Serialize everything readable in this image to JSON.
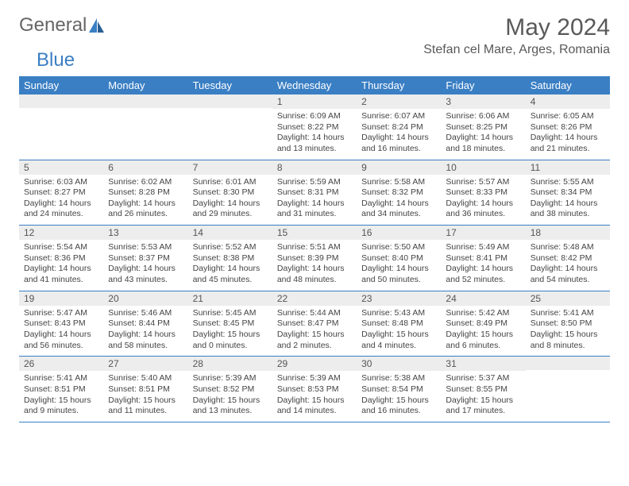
{
  "logo": {
    "text1": "General",
    "text2": "Blue",
    "accent": "#3a7fc4"
  },
  "title": "May 2024",
  "location": "Stefan cel Mare, Arges, Romania",
  "colors": {
    "header_bg": "#3a7fc4",
    "header_text": "#ffffff",
    "daynum_bg": "#ededed",
    "border": "#3a7fc4",
    "text": "#444444"
  },
  "dayHeaders": [
    "Sunday",
    "Monday",
    "Tuesday",
    "Wednesday",
    "Thursday",
    "Friday",
    "Saturday"
  ],
  "weeks": [
    [
      {
        "n": "",
        "sr": "",
        "ss": "",
        "dl": ""
      },
      {
        "n": "",
        "sr": "",
        "ss": "",
        "dl": ""
      },
      {
        "n": "",
        "sr": "",
        "ss": "",
        "dl": ""
      },
      {
        "n": "1",
        "sr": "6:09 AM",
        "ss": "8:22 PM",
        "dl": "14 hours and 13 minutes."
      },
      {
        "n": "2",
        "sr": "6:07 AM",
        "ss": "8:24 PM",
        "dl": "14 hours and 16 minutes."
      },
      {
        "n": "3",
        "sr": "6:06 AM",
        "ss": "8:25 PM",
        "dl": "14 hours and 18 minutes."
      },
      {
        "n": "4",
        "sr": "6:05 AM",
        "ss": "8:26 PM",
        "dl": "14 hours and 21 minutes."
      }
    ],
    [
      {
        "n": "5",
        "sr": "6:03 AM",
        "ss": "8:27 PM",
        "dl": "14 hours and 24 minutes."
      },
      {
        "n": "6",
        "sr": "6:02 AM",
        "ss": "8:28 PM",
        "dl": "14 hours and 26 minutes."
      },
      {
        "n": "7",
        "sr": "6:01 AM",
        "ss": "8:30 PM",
        "dl": "14 hours and 29 minutes."
      },
      {
        "n": "8",
        "sr": "5:59 AM",
        "ss": "8:31 PM",
        "dl": "14 hours and 31 minutes."
      },
      {
        "n": "9",
        "sr": "5:58 AM",
        "ss": "8:32 PM",
        "dl": "14 hours and 34 minutes."
      },
      {
        "n": "10",
        "sr": "5:57 AM",
        "ss": "8:33 PM",
        "dl": "14 hours and 36 minutes."
      },
      {
        "n": "11",
        "sr": "5:55 AM",
        "ss": "8:34 PM",
        "dl": "14 hours and 38 minutes."
      }
    ],
    [
      {
        "n": "12",
        "sr": "5:54 AM",
        "ss": "8:36 PM",
        "dl": "14 hours and 41 minutes."
      },
      {
        "n": "13",
        "sr": "5:53 AM",
        "ss": "8:37 PM",
        "dl": "14 hours and 43 minutes."
      },
      {
        "n": "14",
        "sr": "5:52 AM",
        "ss": "8:38 PM",
        "dl": "14 hours and 45 minutes."
      },
      {
        "n": "15",
        "sr": "5:51 AM",
        "ss": "8:39 PM",
        "dl": "14 hours and 48 minutes."
      },
      {
        "n": "16",
        "sr": "5:50 AM",
        "ss": "8:40 PM",
        "dl": "14 hours and 50 minutes."
      },
      {
        "n": "17",
        "sr": "5:49 AM",
        "ss": "8:41 PM",
        "dl": "14 hours and 52 minutes."
      },
      {
        "n": "18",
        "sr": "5:48 AM",
        "ss": "8:42 PM",
        "dl": "14 hours and 54 minutes."
      }
    ],
    [
      {
        "n": "19",
        "sr": "5:47 AM",
        "ss": "8:43 PM",
        "dl": "14 hours and 56 minutes."
      },
      {
        "n": "20",
        "sr": "5:46 AM",
        "ss": "8:44 PM",
        "dl": "14 hours and 58 minutes."
      },
      {
        "n": "21",
        "sr": "5:45 AM",
        "ss": "8:45 PM",
        "dl": "15 hours and 0 minutes."
      },
      {
        "n": "22",
        "sr": "5:44 AM",
        "ss": "8:47 PM",
        "dl": "15 hours and 2 minutes."
      },
      {
        "n": "23",
        "sr": "5:43 AM",
        "ss": "8:48 PM",
        "dl": "15 hours and 4 minutes."
      },
      {
        "n": "24",
        "sr": "5:42 AM",
        "ss": "8:49 PM",
        "dl": "15 hours and 6 minutes."
      },
      {
        "n": "25",
        "sr": "5:41 AM",
        "ss": "8:50 PM",
        "dl": "15 hours and 8 minutes."
      }
    ],
    [
      {
        "n": "26",
        "sr": "5:41 AM",
        "ss": "8:51 PM",
        "dl": "15 hours and 9 minutes."
      },
      {
        "n": "27",
        "sr": "5:40 AM",
        "ss": "8:51 PM",
        "dl": "15 hours and 11 minutes."
      },
      {
        "n": "28",
        "sr": "5:39 AM",
        "ss": "8:52 PM",
        "dl": "15 hours and 13 minutes."
      },
      {
        "n": "29",
        "sr": "5:39 AM",
        "ss": "8:53 PM",
        "dl": "15 hours and 14 minutes."
      },
      {
        "n": "30",
        "sr": "5:38 AM",
        "ss": "8:54 PM",
        "dl": "15 hours and 16 minutes."
      },
      {
        "n": "31",
        "sr": "5:37 AM",
        "ss": "8:55 PM",
        "dl": "15 hours and 17 minutes."
      },
      {
        "n": "",
        "sr": "",
        "ss": "",
        "dl": ""
      }
    ]
  ]
}
